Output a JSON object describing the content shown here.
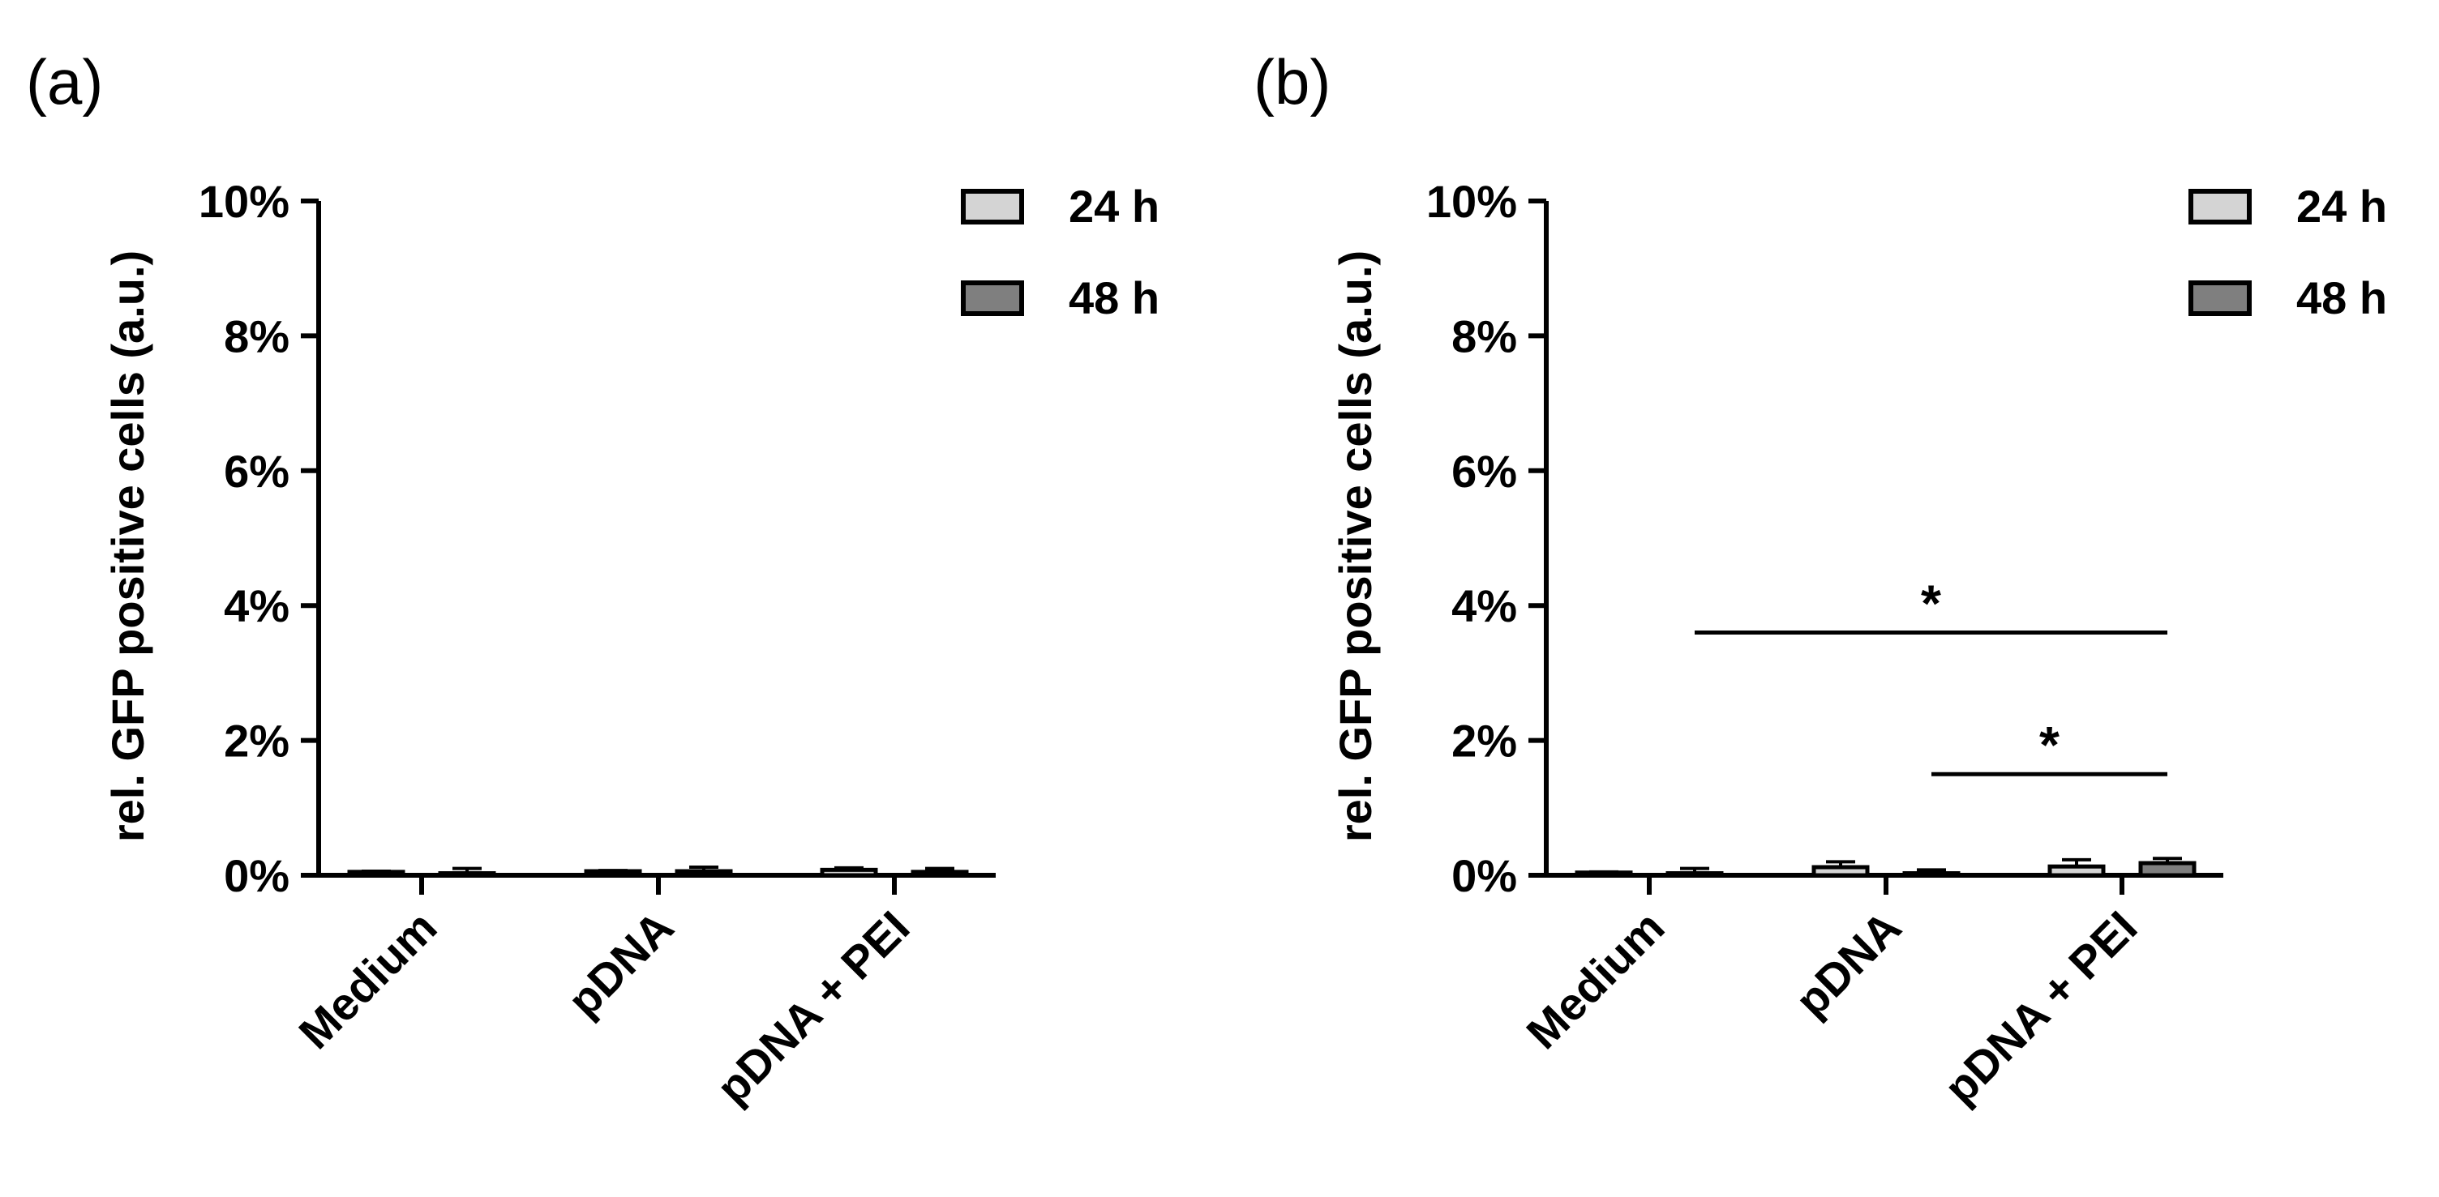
{
  "chart_data": [
    {
      "panel_label": "(a)",
      "type": "bar",
      "ylabel": "rel. GFP positive cells (a.u.)",
      "ylim": [
        0,
        10
      ],
      "yticks": [
        "0%",
        "2%",
        "4%",
        "6%",
        "8%",
        "10%"
      ],
      "categories": [
        "Medium",
        "pDNA",
        "pDNA + PEI"
      ],
      "series": [
        {
          "name": "24 h",
          "color": "#d4d4d4",
          "values": [
            0.05,
            0.06,
            0.08
          ],
          "errors": [
            0.01,
            0.01,
            0.03
          ]
        },
        {
          "name": "48 h",
          "color": "#7f7f7f",
          "values": [
            0.03,
            0.06,
            0.05
          ],
          "errors": [
            0.07,
            0.06,
            0.05
          ]
        }
      ],
      "legend_position": "top-right",
      "significance": []
    },
    {
      "panel_label": "(b)",
      "type": "bar",
      "ylabel": "rel. GFP positive cells (a.u.)",
      "ylim": [
        0,
        10
      ],
      "yticks": [
        "0%",
        "2%",
        "4%",
        "6%",
        "8%",
        "10%"
      ],
      "categories": [
        "Medium",
        "pDNA",
        "pDNA + PEI"
      ],
      "series": [
        {
          "name": "24 h",
          "color": "#d4d4d4",
          "values": [
            0.04,
            0.12,
            0.13
          ],
          "errors": [
            0.01,
            0.08,
            0.1
          ]
        },
        {
          "name": "48 h",
          "color": "#7f7f7f",
          "values": [
            0.03,
            0.03,
            0.18
          ],
          "errors": [
            0.07,
            0.05,
            0.07
          ]
        }
      ],
      "legend_position": "top-right",
      "significance": [
        {
          "label": "*",
          "from": {
            "category": 0,
            "series": 1
          },
          "to": {
            "category": 2,
            "series": 1
          },
          "y": 3.6
        },
        {
          "label": "*",
          "from": {
            "category": 1,
            "series": 1
          },
          "to": {
            "category": 2,
            "series": 1
          },
          "y": 1.5
        }
      ]
    }
  ]
}
